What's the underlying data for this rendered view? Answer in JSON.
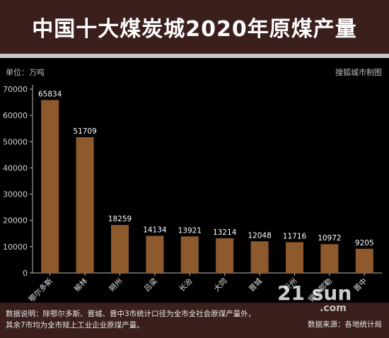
{
  "title": "中国十大煤炭城2020年原煤产量",
  "unit_label": "单位：万吨",
  "credit": "搜狐城市制图",
  "footnote": "数据说明：除鄂尔多斯、晋城、晋中3市统计口径为全市全社会原煤产量外，其余7市均为全市规上工业企业原煤产量。",
  "source": "数据来源：各地统计局",
  "watermark": "21 sun",
  "watermark_sub": ".com",
  "colors": {
    "bar": "#8e5a2d",
    "background": "#000000",
    "header_band": "#3a1f1d",
    "text": "#ffffff"
  },
  "chart_data": {
    "type": "bar",
    "title": "中国十大煤炭城2020年原煤产量",
    "xlabel": "",
    "ylabel": "单位：万吨",
    "categories": [
      "鄂尔多斯",
      "榆林",
      "朔州",
      "吕梁",
      "长治",
      "大同",
      "晋城",
      "忻州",
      "锡林郭勒",
      "晋中"
    ],
    "values": [
      65834,
      51709,
      18259,
      14134,
      13921,
      13214,
      12048,
      11716,
      10972,
      9205
    ],
    "yticks": [
      0,
      10000,
      20000,
      30000,
      40000,
      50000,
      60000,
      70000
    ],
    "ylim": [
      0,
      70000
    ],
    "grid": false,
    "legend": "none"
  }
}
